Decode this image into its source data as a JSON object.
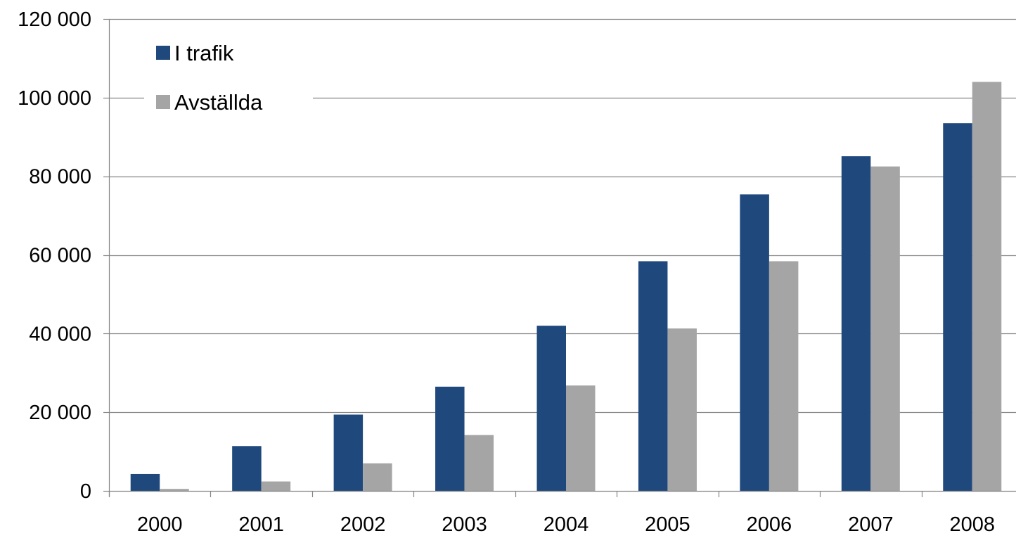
{
  "chart_data": {
    "type": "bar",
    "categories": [
      "2000",
      "2001",
      "2002",
      "2003",
      "2004",
      "2005",
      "2006",
      "2007",
      "2008"
    ],
    "series": [
      {
        "name": "I trafik",
        "color": "#1f497d",
        "values": [
          4300,
          11400,
          19400,
          26500,
          42000,
          58400,
          75400,
          85100,
          93500
        ]
      },
      {
        "name": "Avställda",
        "color": "#a5a5a5",
        "values": [
          500,
          2400,
          7000,
          14200,
          26800,
          41300,
          58400,
          82500,
          104000
        ]
      }
    ],
    "ylim": [
      0,
      120000
    ],
    "yticks": [
      0,
      20000,
      40000,
      60000,
      80000,
      100000,
      120000
    ],
    "ytick_labels": [
      "0",
      "20 000",
      "40 000",
      "60 000",
      "80 000",
      "100 000",
      "120 000"
    ],
    "title": "",
    "xlabel": "",
    "ylabel": "",
    "grid": "horizontal",
    "legend_position": "top-left",
    "colors": {
      "gridline": "#868686",
      "axis": "#868686"
    }
  }
}
